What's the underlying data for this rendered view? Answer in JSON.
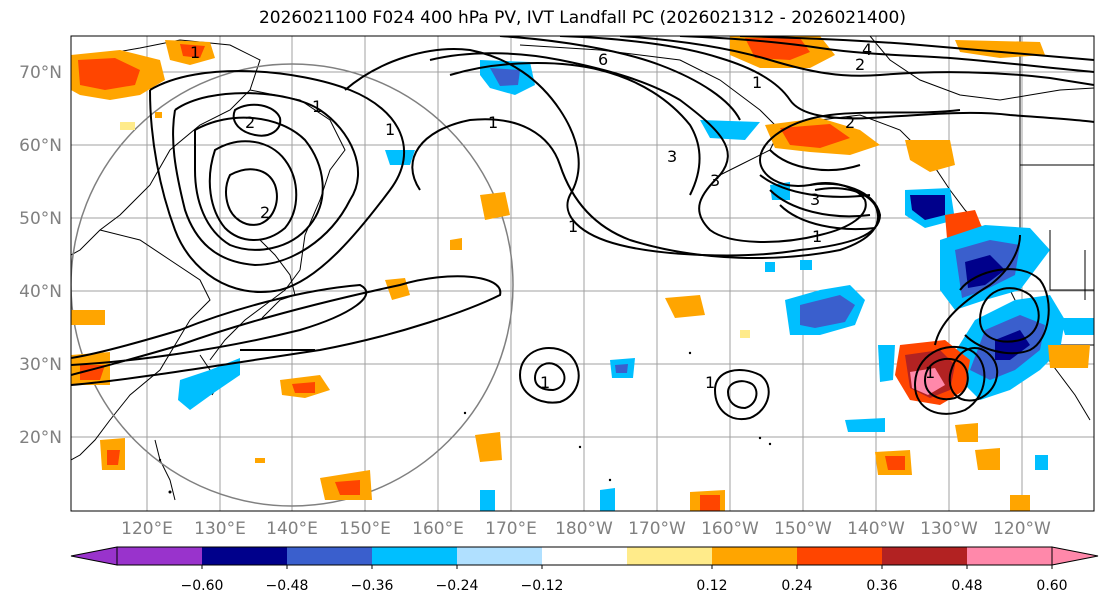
{
  "title": "2026021100 F024 400 hPa PV, IVT Landfall PC (2026021312 - 2026021400)",
  "lat_labels": [
    "70°N",
    "60°N",
    "50°N",
    "40°N",
    "30°N",
    "20°N"
  ],
  "lon_labels": [
    "120°E",
    "130°E",
    "140°E",
    "150°E",
    "160°E",
    "170°E",
    "180°W",
    "170°W",
    "160°W",
    "150°W",
    "140°W",
    "130°W",
    "120°W"
  ],
  "colorbar": {
    "ticks": [
      "−0.60",
      "−0.48",
      "−0.36",
      "−0.24",
      "−0.12",
      "0.12",
      "0.24",
      "0.36",
      "0.48",
      "0.60"
    ],
    "colors": [
      "#9933cc",
      "#00008b",
      "#3a5fcd",
      "#00bfff",
      "#b0e0ff",
      "#ffffff",
      "#ffeb8a",
      "#ffa500",
      "#ff4500",
      "#b22222",
      "#ff88aa",
      "#ff88aa"
    ]
  },
  "contour_labels": [
    "1",
    "1",
    "1",
    "1",
    "1",
    "1",
    "1",
    "2",
    "2",
    "2",
    "2",
    "3",
    "3",
    "3",
    "4",
    "6",
    "1",
    "1",
    "1"
  ]
}
